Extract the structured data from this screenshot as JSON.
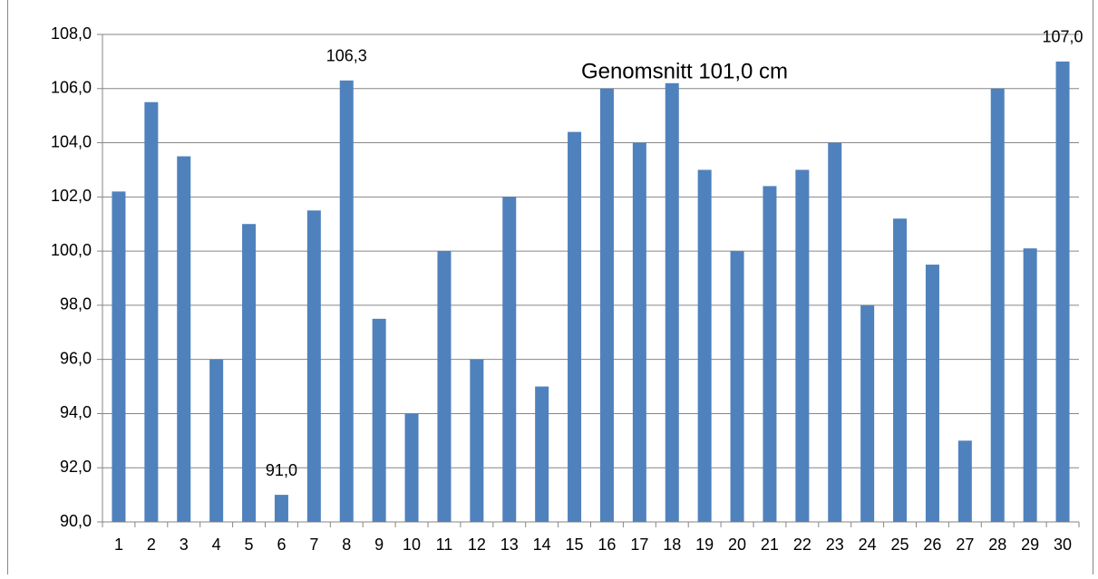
{
  "chart_data": {
    "type": "bar",
    "annotation": "Genomsnitt  101,0 cm",
    "categories": [
      "1",
      "2",
      "3",
      "4",
      "5",
      "6",
      "7",
      "8",
      "9",
      "10",
      "11",
      "12",
      "13",
      "14",
      "15",
      "16",
      "17",
      "18",
      "19",
      "20",
      "21",
      "22",
      "23",
      "24",
      "25",
      "26",
      "27",
      "28",
      "29",
      "30"
    ],
    "values": [
      102.2,
      105.5,
      103.5,
      96,
      101,
      91,
      101.5,
      106.3,
      97.5,
      94,
      100,
      96,
      102,
      95,
      104.4,
      106,
      104,
      106.2,
      103,
      100,
      102.4,
      103,
      104,
      98,
      101.2,
      99.5,
      93,
      106,
      100.1,
      107
    ],
    "value_labels": [
      null,
      null,
      null,
      null,
      null,
      "91,0",
      null,
      "106,3",
      null,
      null,
      null,
      null,
      null,
      null,
      null,
      null,
      null,
      null,
      null,
      null,
      null,
      null,
      null,
      null,
      null,
      null,
      null,
      null,
      null,
      "107,0"
    ],
    "color": "#4f81bd",
    "ylim": [
      90,
      108
    ],
    "yticks": [
      {
        "value": 90,
        "label": "90,0"
      },
      {
        "value": 92,
        "label": "92,0"
      },
      {
        "value": 94,
        "label": "94,0"
      },
      {
        "value": 96,
        "label": "96,0"
      },
      {
        "value": 98,
        "label": "98,0"
      },
      {
        "value": 100,
        "label": "100,0"
      },
      {
        "value": 102,
        "label": "102,0"
      },
      {
        "value": 104,
        "label": "104,0"
      },
      {
        "value": 106,
        "label": "106,0"
      },
      {
        "value": 108,
        "label": "108,0"
      }
    ],
    "grid": true
  }
}
